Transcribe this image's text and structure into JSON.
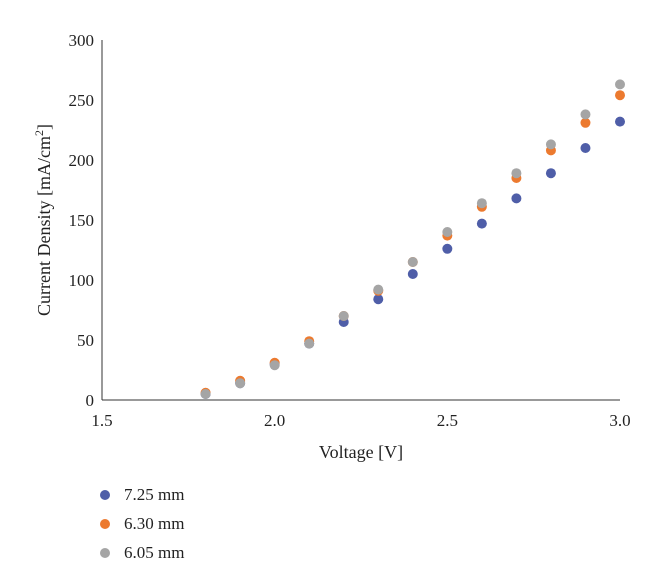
{
  "chart_data": {
    "type": "scatter",
    "title": "",
    "xlabel": "Voltage [V]",
    "ylabel_main": "Current Density [mA/cm",
    "ylabel_sup": "2",
    "ylabel_end": "]",
    "xlim": [
      1.5,
      3.0
    ],
    "ylim": [
      0,
      300
    ],
    "xticks": [
      1.5,
      2.0,
      2.5,
      3.0
    ],
    "xtick_labels": [
      "1.5",
      "2.0",
      "2.5",
      "3.0"
    ],
    "yticks": [
      0,
      50,
      100,
      150,
      200,
      250,
      300
    ],
    "ytick_labels": [
      "0",
      "50",
      "100",
      "150",
      "200",
      "250",
      "300"
    ],
    "grid": false,
    "legend_position": "bottom-left",
    "x": [
      1.8,
      1.9,
      2.0,
      2.1,
      2.2,
      2.3,
      2.4,
      2.5,
      2.6,
      2.7,
      2.8,
      2.9,
      3.0
    ],
    "series": [
      {
        "name": "7.25 mm",
        "color": "#4f5ea8",
        "values": [
          5,
          14,
          30,
          47,
          65,
          84,
          105,
          126,
          147,
          168,
          189,
          210,
          232
        ]
      },
      {
        "name": "6.30 mm",
        "color": "#ec7a2f",
        "values": [
          6,
          16,
          31,
          49,
          70,
          91,
          115,
          137,
          161,
          185,
          208,
          231,
          254
        ]
      },
      {
        "name": "6.05 mm",
        "color": "#a5a5a5",
        "values": [
          5,
          14,
          29,
          47,
          70,
          92,
          115,
          140,
          164,
          189,
          213,
          238,
          263
        ]
      }
    ]
  }
}
